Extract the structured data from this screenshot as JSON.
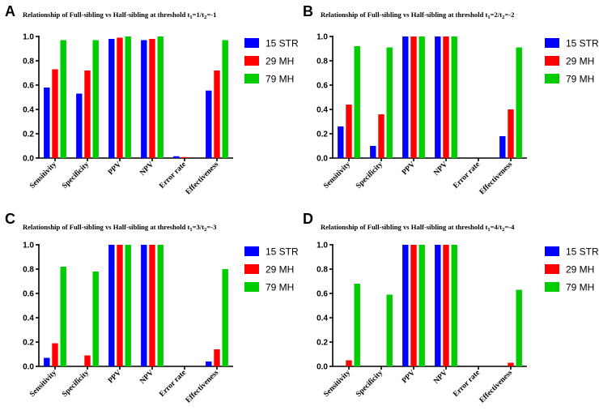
{
  "chart_data": [
    {
      "type": "bar",
      "panel": "A",
      "title": "Relationship of Full-sibling vs Half-sibling at threshold t",
      "title_sub1": "1",
      "title_mid": "=1/t",
      "title_sub2": "2",
      "title_end": "=-1",
      "categories": [
        "Sensitivity",
        "Specificity",
        "PPV",
        "NPV",
        "Error rate",
        "Effectiveness"
      ],
      "ylim": [
        0,
        1.0
      ],
      "yticks": [
        "0.0",
        "0.2",
        "0.4",
        "0.6",
        "0.8",
        "1.0"
      ],
      "series": [
        {
          "name": "15 STR",
          "color": "#0000ff",
          "values": [
            0.58,
            0.53,
            0.98,
            0.97,
            0.015,
            0.555
          ]
        },
        {
          "name": "29 MH",
          "color": "#ff0000",
          "values": [
            0.73,
            0.72,
            0.99,
            0.98,
            0.008,
            0.72
          ]
        },
        {
          "name": "79 MH",
          "color": "#00cc00",
          "values": [
            0.97,
            0.97,
            1.0,
            1.0,
            0.0,
            0.97
          ]
        }
      ]
    },
    {
      "type": "bar",
      "panel": "B",
      "title": "Relationship of Full-sibling vs Half-sibling at threshold t",
      "title_sub1": "1",
      "title_mid": "=2/t",
      "title_sub2": "2",
      "title_end": "=-2",
      "categories": [
        "Sensitivity",
        "Specificity",
        "PPV",
        "NPV",
        "Error rate",
        "Effectiveness"
      ],
      "ylim": [
        0,
        1.0
      ],
      "yticks": [
        "0.0",
        "0.2",
        "0.4",
        "0.6",
        "0.8",
        "1.0"
      ],
      "series": [
        {
          "name": "15 STR",
          "color": "#0000ff",
          "values": [
            0.26,
            0.1,
            1.0,
            1.0,
            0.0,
            0.18
          ]
        },
        {
          "name": "29 MH",
          "color": "#ff0000",
          "values": [
            0.44,
            0.36,
            1.0,
            1.0,
            0.0,
            0.4
          ]
        },
        {
          "name": "79 MH",
          "color": "#00cc00",
          "values": [
            0.92,
            0.91,
            1.0,
            1.0,
            0.0,
            0.91
          ]
        }
      ]
    },
    {
      "type": "bar",
      "panel": "C",
      "title": "Relationship of Full-sibling vs Half-sibling at threshold t",
      "title_sub1": "1",
      "title_mid": "=3/t",
      "title_sub2": "2",
      "title_end": "=-3",
      "categories": [
        "Sensitivity",
        "Specificity",
        "PPV",
        "NPV",
        "Error rate",
        "Effectiveness"
      ],
      "ylim": [
        0,
        1.0
      ],
      "yticks": [
        "0.0",
        "0.2",
        "0.4",
        "0.6",
        "0.8",
        "1.0"
      ],
      "series": [
        {
          "name": "15 STR",
          "color": "#0000ff",
          "values": [
            0.07,
            0.0,
            1.0,
            1.0,
            0.0,
            0.04
          ]
        },
        {
          "name": "29 MH",
          "color": "#ff0000",
          "values": [
            0.19,
            0.09,
            1.0,
            1.0,
            0.0,
            0.14
          ]
        },
        {
          "name": "79 MH",
          "color": "#00cc00",
          "values": [
            0.82,
            0.78,
            1.0,
            1.0,
            0.0,
            0.8
          ]
        }
      ]
    },
    {
      "type": "bar",
      "panel": "D",
      "title": "Relationship of Full-sibling vs Half-sibling at threshold t",
      "title_sub1": "1",
      "title_mid": "=4/t",
      "title_sub2": "2",
      "title_end": "=-4",
      "categories": [
        "Sensitivity",
        "Specificity",
        "PPV",
        "NPV",
        "Error rate",
        "Effectiveness"
      ],
      "ylim": [
        0,
        1.0
      ],
      "yticks": [
        "0.0",
        "0.2",
        "0.4",
        "0.6",
        "0.8",
        "1.0"
      ],
      "series": [
        {
          "name": "15 STR",
          "color": "#0000ff",
          "values": [
            0.0,
            0.0,
            1.0,
            1.0,
            0.0,
            0.0
          ]
        },
        {
          "name": "29 MH",
          "color": "#ff0000",
          "values": [
            0.05,
            0.0,
            1.0,
            1.0,
            0.0,
            0.03
          ]
        },
        {
          "name": "79 MH",
          "color": "#00cc00",
          "values": [
            0.68,
            0.59,
            1.0,
            1.0,
            0.0,
            0.63
          ]
        }
      ]
    }
  ]
}
